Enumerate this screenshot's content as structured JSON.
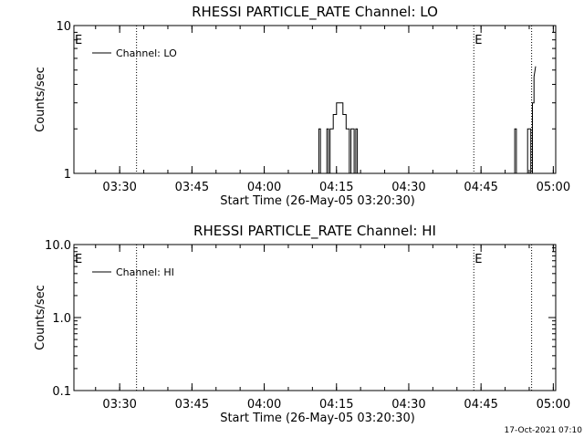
{
  "chart_data": [
    {
      "type": "line",
      "title": "RHESSI PARTICLE_RATE Channel: LO",
      "xlabel": "Start Time (26-May-05 03:20:30)",
      "ylabel": "Counts/sec",
      "y_scale": "log",
      "ylim": [
        1,
        10
      ],
      "xlim": [
        "03:20:30",
        "05:00:30"
      ],
      "x_ticks": [
        "03:30",
        "03:45",
        "04:00",
        "04:15",
        "04:30",
        "04:45",
        "05:00"
      ],
      "y_ticks": [
        "1",
        "10"
      ],
      "legend": {
        "label": "Channel: LO",
        "placement": "top-left"
      },
      "markers": [
        {
          "label": "E",
          "time": "03:20:30"
        },
        {
          "label": "",
          "time": "03:33:30"
        },
        {
          "label": "E",
          "time": "04:43:30"
        },
        {
          "label": "",
          "time": "04:55:30"
        }
      ],
      "series": [
        {
          "name": "Channel: LO",
          "points": [
            [
              "04:11:20",
              1
            ],
            [
              "04:11:20",
              2
            ],
            [
              "04:11:40",
              2
            ],
            [
              "04:11:40",
              1
            ],
            [
              "04:13:00",
              1
            ],
            [
              "04:13:00",
              2
            ],
            [
              "04:13:20",
              2
            ],
            [
              "04:13:20",
              1
            ],
            [
              "04:13:40",
              1
            ],
            [
              "04:13:40",
              2
            ],
            [
              "04:14:20",
              2
            ],
            [
              "04:14:20",
              2.5
            ],
            [
              "04:15:00",
              2.5
            ],
            [
              "04:15:00",
              3
            ],
            [
              "04:16:20",
              3
            ],
            [
              "04:16:20",
              2.5
            ],
            [
              "04:17:00",
              2.5
            ],
            [
              "04:17:00",
              2
            ],
            [
              "04:17:40",
              2
            ],
            [
              "04:17:40",
              1
            ],
            [
              "04:18:00",
              1
            ],
            [
              "04:18:00",
              2
            ],
            [
              "04:18:40",
              2
            ],
            [
              "04:18:40",
              1
            ],
            [
              "04:19:00",
              1
            ],
            [
              "04:19:00",
              2
            ],
            [
              "04:19:20",
              2
            ],
            [
              "04:19:20",
              1
            ],
            [
              "04:52:00",
              1
            ],
            [
              "04:52:00",
              2
            ],
            [
              "04:52:20",
              2
            ],
            [
              "04:52:20",
              1
            ],
            [
              "04:54:40",
              1
            ],
            [
              "04:54:40",
              2
            ],
            [
              "04:55:20",
              2
            ],
            [
              "04:55:20",
              1
            ],
            [
              "04:55:40",
              1
            ],
            [
              "04:55:40",
              3
            ],
            [
              "04:56:00",
              3
            ],
            [
              "04:56:00",
              4.5
            ],
            [
              "04:56:20",
              5.3
            ]
          ]
        }
      ]
    },
    {
      "type": "line",
      "title": "RHESSI PARTICLE_RATE Channel: HI",
      "xlabel": "Start Time (26-May-05 03:20:30)",
      "ylabel": "Counts/sec",
      "y_scale": "log",
      "ylim": [
        0.1,
        10
      ],
      "xlim": [
        "03:20:30",
        "05:00:30"
      ],
      "x_ticks": [
        "03:30",
        "03:45",
        "04:00",
        "04:15",
        "04:30",
        "04:45",
        "05:00"
      ],
      "y_ticks": [
        "0.1",
        "1.0",
        "10.0"
      ],
      "legend": {
        "label": "Channel: HI",
        "placement": "top-left"
      },
      "markers": [
        {
          "label": "E",
          "time": "03:20:30"
        },
        {
          "label": "",
          "time": "03:33:30"
        },
        {
          "label": "E",
          "time": "04:43:30"
        },
        {
          "label": "",
          "time": "04:55:30"
        }
      ],
      "series": [
        {
          "name": "Channel: HI",
          "points": []
        }
      ]
    }
  ],
  "footer": {
    "timestamp": "17-Oct-2021 07:10"
  }
}
